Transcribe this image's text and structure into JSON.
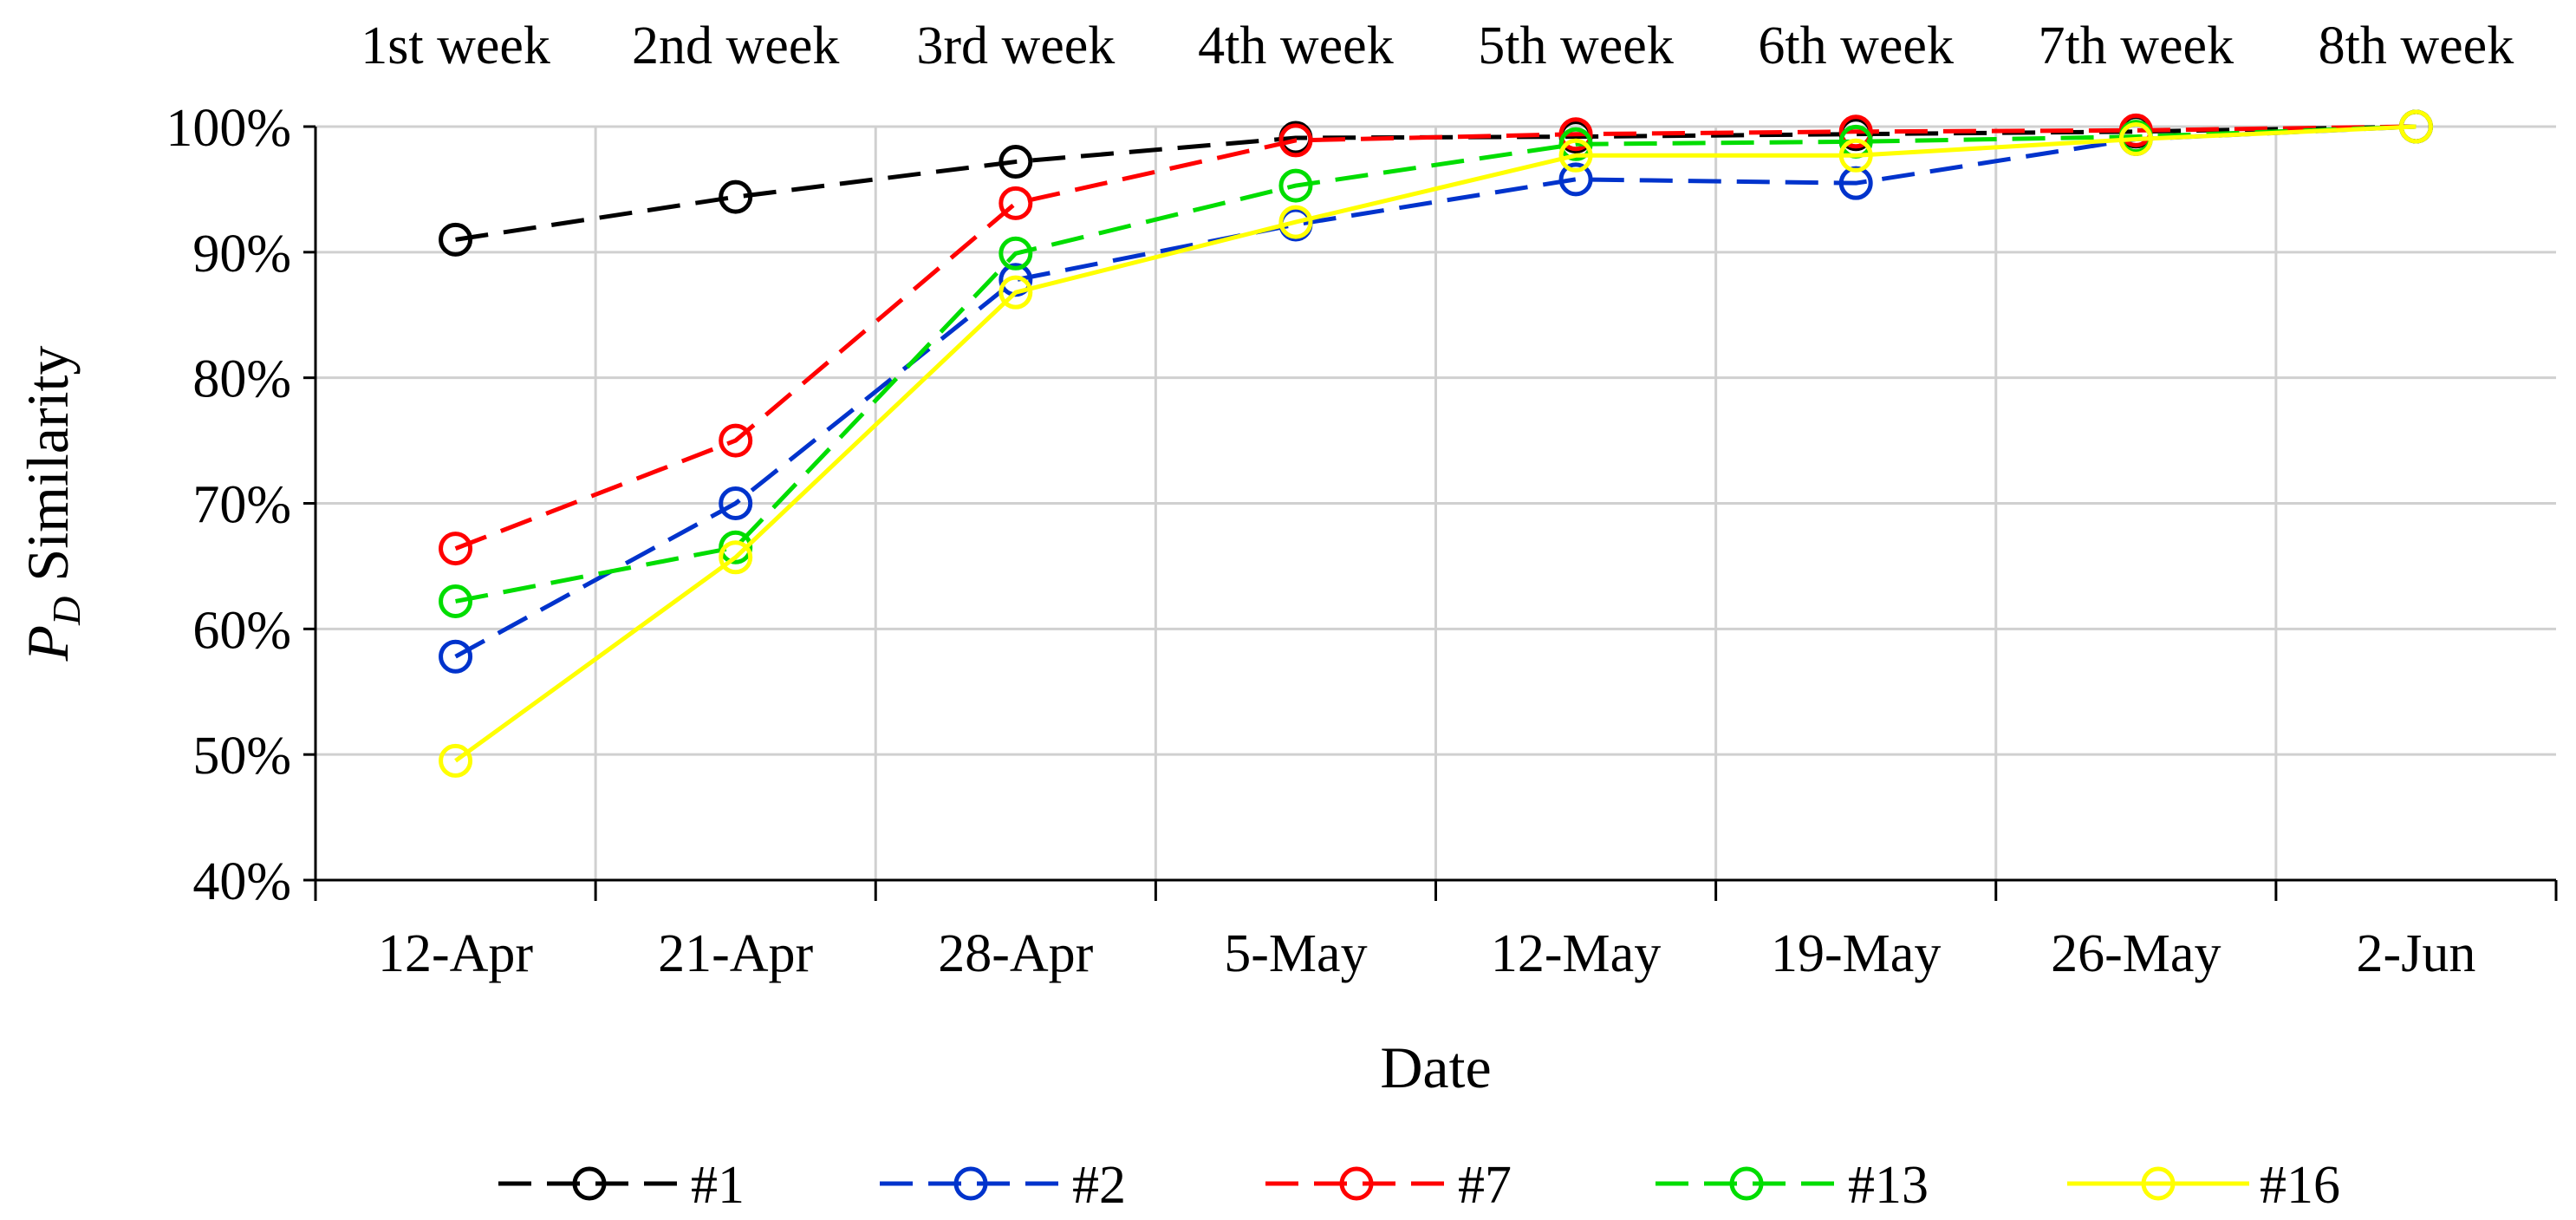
{
  "chart_data": {
    "type": "line",
    "title": "",
    "xlabel": "Date",
    "ylabel": {
      "main": "P",
      "subscript": "D",
      "rest": " Similarity"
    },
    "categories": [
      "12-Apr",
      "21-Apr",
      "28-Apr",
      "5-May",
      "12-May",
      "19-May",
      "26-May",
      "2-Jun"
    ],
    "top_categories": [
      "1st week",
      "2nd week",
      "3rd week",
      "4th week",
      "5th week",
      "6th week",
      "7th week",
      "8th week"
    ],
    "ylim": [
      40,
      100
    ],
    "yticks": [
      40,
      50,
      60,
      70,
      80,
      90,
      100
    ],
    "ytick_labels": [
      "40%",
      "50%",
      "60%",
      "70%",
      "80%",
      "90%",
      "100%"
    ],
    "grid": true,
    "legend_position": "bottom",
    "series": [
      {
        "name": "#1",
        "color": "#000000",
        "dash": "dashed",
        "marker": "open-circle",
        "values": [
          91.0,
          94.4,
          97.2,
          99.1,
          99.2,
          99.4,
          99.6,
          100
        ]
      },
      {
        "name": "#2",
        "color": "#0033cc",
        "dash": "dashed",
        "marker": "open-circle",
        "values": [
          57.8,
          70.0,
          87.8,
          92.2,
          95.8,
          95.5,
          99.0,
          100
        ]
      },
      {
        "name": "#7",
        "color": "#ff0000",
        "dash": "dashed",
        "marker": "open-circle",
        "values": [
          66.4,
          75.0,
          93.9,
          98.9,
          99.4,
          99.6,
          99.7,
          100
        ]
      },
      {
        "name": "#13",
        "color": "#00dd00",
        "dash": "dashed",
        "marker": "open-circle",
        "values": [
          62.2,
          66.5,
          89.9,
          95.3,
          98.6,
          98.8,
          99.2,
          100
        ]
      },
      {
        "name": "#16",
        "color": "#ffff00",
        "dash": "solid",
        "marker": "open-circle",
        "values": [
          49.5,
          65.7,
          86.8,
          92.4,
          97.7,
          97.7,
          99.0,
          100
        ]
      }
    ]
  }
}
